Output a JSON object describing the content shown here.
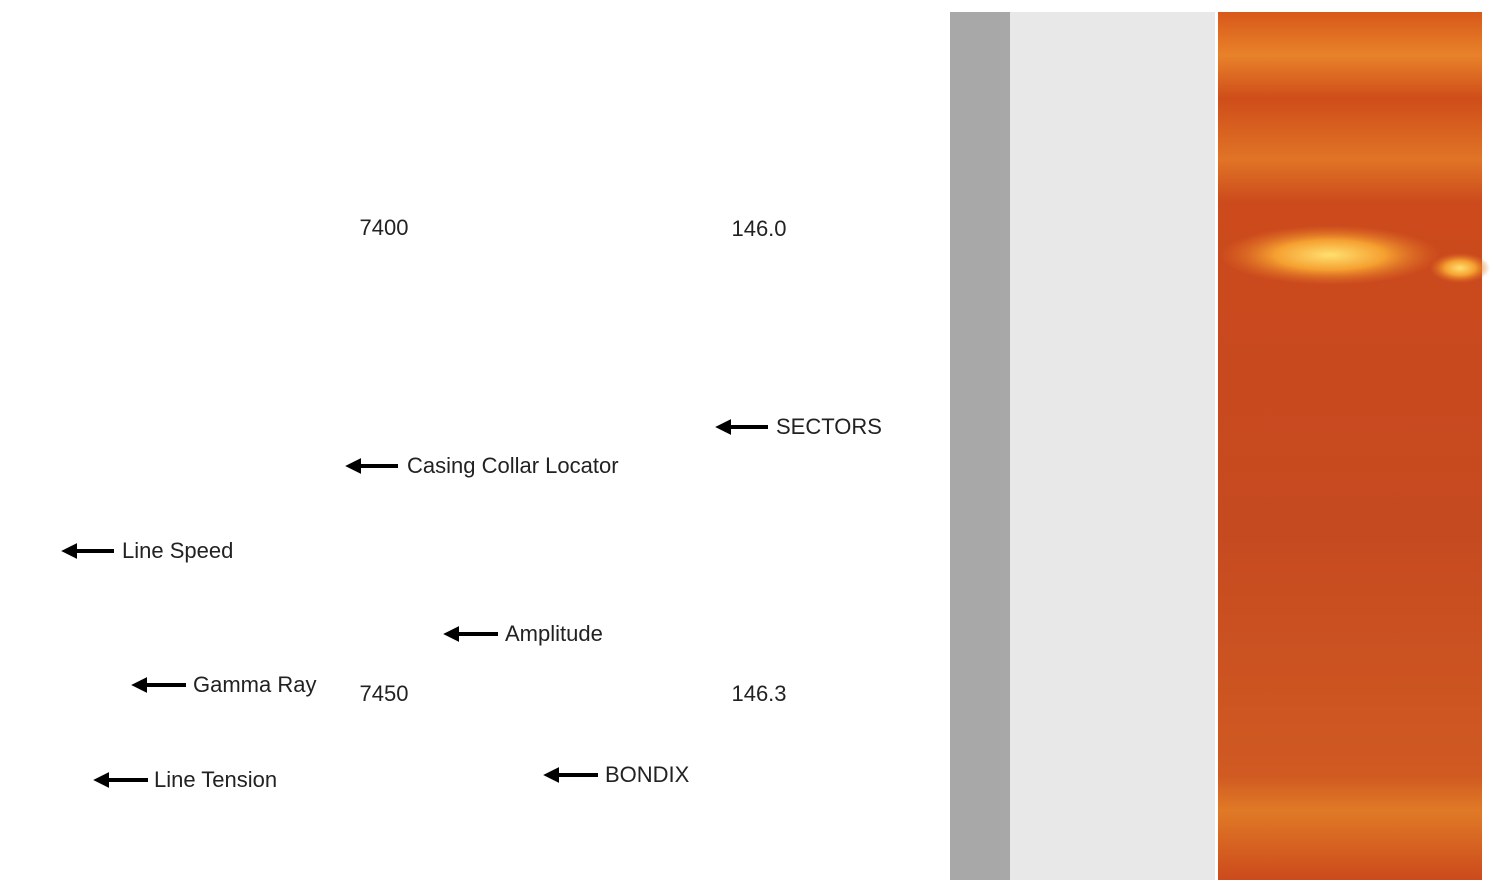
{
  "depth_labels": [
    "7400",
    "7450"
  ],
  "amplitude_labels": [
    "146.0",
    "146.3"
  ],
  "annotations": [
    "Line Speed",
    "Gamma Ray",
    "Line Tension",
    "Casing Collar Locator",
    "Amplitude",
    "BONDIX",
    "SECTORS"
  ]
}
